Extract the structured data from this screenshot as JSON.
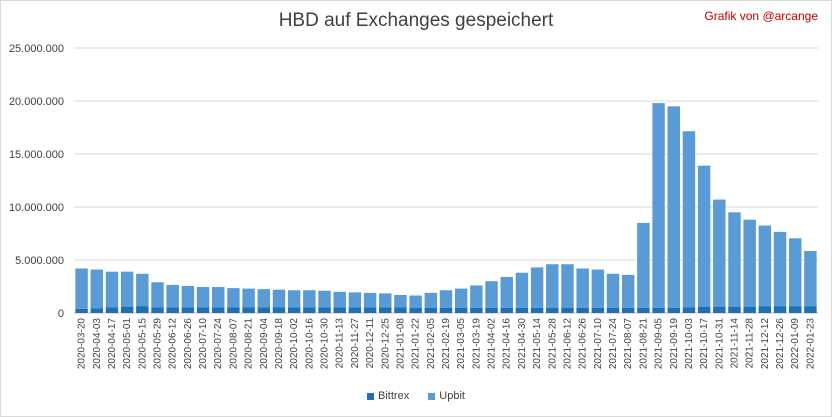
{
  "header": {
    "title": "HBD auf Exchanges gespeichert",
    "credit": "Grafik von @arcange"
  },
  "chart_data": {
    "type": "bar",
    "stacked": true,
    "title": "HBD auf Exchanges gespeichert",
    "xlabel": "",
    "ylabel": "",
    "ylim": [
      0,
      25000000
    ],
    "yticks": [
      0,
      5000000,
      10000000,
      15000000,
      20000000,
      25000000
    ],
    "ytick_labels": [
      "0",
      "5.000.000",
      "10.000.000",
      "15.000.000",
      "20.000.000",
      "25.000.000"
    ],
    "grid": true,
    "legend_position": "bottom",
    "categories": [
      "2020-03-20",
      "2020-04-03",
      "2020-04-17",
      "2020-05-01",
      "2020-05-15",
      "2020-05-29",
      "2020-06-12",
      "2020-06-26",
      "2020-07-10",
      "2020-07-24",
      "2020-08-07",
      "2020-08-21",
      "2020-09-04",
      "2020-09-18",
      "2020-10-02",
      "2020-10-16",
      "2020-10-30",
      "2020-11-13",
      "2020-11-27",
      "2020-12-11",
      "2020-12-25",
      "2021-01-08",
      "2021-01-22",
      "2021-02-05",
      "2021-02-19",
      "2021-03-05",
      "2021-03-19",
      "2021-04-02",
      "2021-04-16",
      "2021-04-30",
      "2021-05-14",
      "2021-05-28",
      "2021-06-12",
      "2021-06-26",
      "2021-07-10",
      "2021-07-24",
      "2021-08-07",
      "2021-08-21",
      "2021-09-05",
      "2021-09-19",
      "2021-10-03",
      "2021-10-17",
      "2021-10-31",
      "2021-11-14",
      "2021-11-28",
      "2021-12-12",
      "2021-12-26",
      "2022-01-09",
      "2022-01-23"
    ],
    "series": [
      {
        "name": "Bittrex",
        "color": "#1f6fb5",
        "values": [
          400000,
          450000,
          550000,
          600000,
          650000,
          550000,
          550000,
          550000,
          550000,
          550000,
          550000,
          550000,
          550000,
          550000,
          550000,
          550000,
          550000,
          550000,
          550000,
          550000,
          550000,
          550000,
          500000,
          500000,
          500000,
          500000,
          500000,
          500000,
          500000,
          500000,
          500000,
          500000,
          500000,
          500000,
          500000,
          500000,
          500000,
          500000,
          500000,
          500000,
          550000,
          600000,
          600000,
          600000,
          600000,
          650000,
          650000,
          650000,
          650000
        ]
      },
      {
        "name": "Upbit",
        "color": "#5b9bd5",
        "values": [
          3800000,
          3650000,
          3350000,
          3300000,
          3050000,
          2350000,
          2100000,
          2000000,
          1900000,
          1900000,
          1800000,
          1750000,
          1700000,
          1650000,
          1600000,
          1600000,
          1550000,
          1450000,
          1400000,
          1350000,
          1300000,
          1150000,
          1150000,
          1400000,
          1650000,
          1800000,
          2100000,
          2500000,
          2900000,
          3300000,
          3800000,
          4100000,
          4100000,
          3700000,
          3600000,
          3200000,
          3100000,
          8000000,
          19300000,
          19000000,
          16600000,
          13300000,
          10100000,
          8900000,
          8200000,
          7600000,
          7000000,
          6400000,
          5200000
        ]
      }
    ]
  },
  "legend": {
    "items": [
      {
        "label": "Bittrex",
        "color": "#1f6fb5"
      },
      {
        "label": "Upbit",
        "color": "#5b9bd5"
      }
    ]
  }
}
